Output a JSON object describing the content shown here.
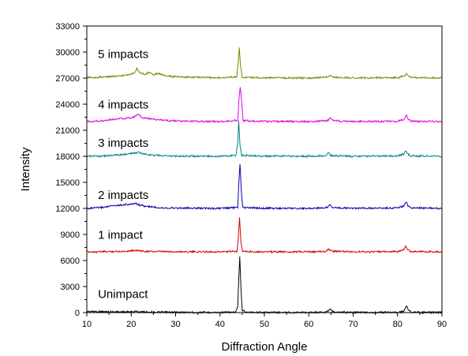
{
  "chart_data": {
    "type": "line",
    "title": "",
    "xlabel": "Diffraction Angle",
    "ylabel": "Intensity",
    "xlim": [
      10,
      90
    ],
    "ylim": [
      0,
      33000
    ],
    "xticks": [
      10,
      20,
      30,
      40,
      50,
      60,
      70,
      80,
      90
    ],
    "yticks": [
      0,
      3000,
      6000,
      9000,
      12000,
      15000,
      18000,
      21000,
      24000,
      27000,
      30000,
      33000
    ],
    "grid": false,
    "legend": "inline-labels",
    "series": [
      {
        "name": "Unimpact",
        "color": "#000000",
        "baseline": 0,
        "label_pos": [
          12.5,
          1700
        ],
        "points": [
          [
            10,
            150
          ],
          [
            12,
            120
          ],
          [
            14,
            100
          ],
          [
            16,
            90
          ],
          [
            18,
            80
          ],
          [
            20,
            90
          ],
          [
            21,
            150
          ],
          [
            22,
            90
          ],
          [
            25,
            60
          ],
          [
            30,
            30
          ],
          [
            35,
            20
          ],
          [
            40,
            20
          ],
          [
            43.5,
            40
          ],
          [
            44,
            600
          ],
          [
            44.2,
            3500
          ],
          [
            44.45,
            6500
          ],
          [
            44.7,
            3000
          ],
          [
            45,
            300
          ],
          [
            46,
            40
          ],
          [
            50,
            20
          ],
          [
            55,
            20
          ],
          [
            60,
            20
          ],
          [
            63.5,
            40
          ],
          [
            64.3,
            200
          ],
          [
            64.8,
            450
          ],
          [
            65.3,
            150
          ],
          [
            66,
            30
          ],
          [
            70,
            20
          ],
          [
            75,
            20
          ],
          [
            80,
            30
          ],
          [
            81.3,
            120
          ],
          [
            81.7,
            500
          ],
          [
            82,
            800
          ],
          [
            82.3,
            450
          ],
          [
            83,
            50
          ],
          [
            85,
            20
          ],
          [
            90,
            20
          ]
        ]
      },
      {
        "name": "1 impact",
        "color": "#d40000",
        "baseline": 7000,
        "label_pos": [
          12.5,
          8500
        ],
        "points": [
          [
            10,
            7000
          ],
          [
            15,
            7020
          ],
          [
            18,
            7060
          ],
          [
            20,
            7120
          ],
          [
            21,
            7200
          ],
          [
            22,
            7100
          ],
          [
            24,
            7040
          ],
          [
            30,
            7010
          ],
          [
            40,
            7000
          ],
          [
            43.8,
            7050
          ],
          [
            44.1,
            8500
          ],
          [
            44.4,
            11000
          ],
          [
            44.7,
            8200
          ],
          [
            45.1,
            7050
          ],
          [
            50,
            7000
          ],
          [
            60,
            7000
          ],
          [
            63.8,
            7030
          ],
          [
            64.6,
            7300
          ],
          [
            65.2,
            7080
          ],
          [
            70,
            7000
          ],
          [
            80,
            7020
          ],
          [
            81.4,
            7200
          ],
          [
            81.8,
            7700
          ],
          [
            82.2,
            7300
          ],
          [
            82.8,
            7040
          ],
          [
            90,
            7000
          ]
        ]
      },
      {
        "name": "2 impacts",
        "color": "#0000aa",
        "baseline": 12000,
        "label_pos": [
          12.5,
          13100
        ],
        "points": [
          [
            10,
            12000
          ],
          [
            12,
            12050
          ],
          [
            14,
            12150
          ],
          [
            16,
            12300
          ],
          [
            18,
            12420
          ],
          [
            20,
            12480
          ],
          [
            21,
            12600
          ],
          [
            21.5,
            12450
          ],
          [
            23,
            12250
          ],
          [
            26,
            12100
          ],
          [
            30,
            12040
          ],
          [
            40,
            12000
          ],
          [
            44,
            12100
          ],
          [
            44.2,
            14500
          ],
          [
            44.5,
            17200
          ],
          [
            44.8,
            14000
          ],
          [
            45.1,
            12100
          ],
          [
            50,
            12020
          ],
          [
            60,
            12000
          ],
          [
            64.2,
            12100
          ],
          [
            64.8,
            12450
          ],
          [
            65.4,
            12080
          ],
          [
            70,
            12000
          ],
          [
            80,
            12050
          ],
          [
            81.5,
            12300
          ],
          [
            81.9,
            12750
          ],
          [
            82.3,
            12350
          ],
          [
            83,
            12060
          ],
          [
            90,
            12000
          ]
        ]
      },
      {
        "name": "3 impacts",
        "color": "#008080",
        "baseline": 18000,
        "label_pos": [
          12.5,
          19100
        ],
        "points": [
          [
            10,
            18000
          ],
          [
            14,
            18050
          ],
          [
            17,
            18150
          ],
          [
            19,
            18250
          ],
          [
            20.5,
            18350
          ],
          [
            21.5,
            18450
          ],
          [
            22.5,
            18300
          ],
          [
            25,
            18120
          ],
          [
            30,
            18030
          ],
          [
            40,
            18000
          ],
          [
            43.6,
            18100
          ],
          [
            44,
            19500
          ],
          [
            44.2,
            22000
          ],
          [
            44.5,
            19300
          ],
          [
            44.9,
            18100
          ],
          [
            50,
            18020
          ],
          [
            60,
            18000
          ],
          [
            63.8,
            18080
          ],
          [
            64.4,
            18380
          ],
          [
            65,
            18080
          ],
          [
            70,
            18000
          ],
          [
            80,
            18050
          ],
          [
            81.4,
            18250
          ],
          [
            81.8,
            18650
          ],
          [
            82.2,
            18280
          ],
          [
            83,
            18050
          ],
          [
            90,
            18000
          ]
        ]
      },
      {
        "name": "4 impacts",
        "color": "#e000e0",
        "baseline": 22000,
        "label_pos": [
          12.5,
          23500
        ],
        "points": [
          [
            10,
            22000
          ],
          [
            13,
            22080
          ],
          [
            16,
            22250
          ],
          [
            19,
            22400
          ],
          [
            20.5,
            22480
          ],
          [
            21.5,
            22850
          ],
          [
            22.5,
            22450
          ],
          [
            25,
            22250
          ],
          [
            28,
            22120
          ],
          [
            32,
            22050
          ],
          [
            40,
            22000
          ],
          [
            44,
            22150
          ],
          [
            44.3,
            24800
          ],
          [
            44.55,
            26000
          ],
          [
            44.85,
            24500
          ],
          [
            45.2,
            22100
          ],
          [
            50,
            22020
          ],
          [
            60,
            22000
          ],
          [
            64.3,
            22120
          ],
          [
            64.9,
            22450
          ],
          [
            65.5,
            22100
          ],
          [
            70,
            22000
          ],
          [
            80,
            22040
          ],
          [
            81.6,
            22300
          ],
          [
            82,
            22700
          ],
          [
            82.4,
            22300
          ],
          [
            83,
            22050
          ],
          [
            90,
            22000
          ]
        ]
      },
      {
        "name": "5 impacts",
        "color": "#808000",
        "baseline": 27000,
        "label_pos": [
          12.5,
          29300
        ],
        "points": [
          [
            10,
            27050
          ],
          [
            13,
            27120
          ],
          [
            16,
            27220
          ],
          [
            19,
            27350
          ],
          [
            20.5,
            27500
          ],
          [
            21.3,
            28100
          ],
          [
            22,
            27600
          ],
          [
            23.2,
            27450
          ],
          [
            24,
            27650
          ],
          [
            25,
            27400
          ],
          [
            26.2,
            27550
          ],
          [
            27,
            27350
          ],
          [
            29,
            27200
          ],
          [
            32,
            27120
          ],
          [
            36,
            27080
          ],
          [
            40,
            27050
          ],
          [
            43.8,
            27150
          ],
          [
            44.1,
            28800
          ],
          [
            44.35,
            30500
          ],
          [
            44.6,
            28500
          ],
          [
            45,
            27100
          ],
          [
            50,
            27030
          ],
          [
            60,
            27020
          ],
          [
            64.2,
            27120
          ],
          [
            64.8,
            27350
          ],
          [
            65.4,
            27100
          ],
          [
            70,
            27020
          ],
          [
            80,
            27050
          ],
          [
            81.6,
            27250
          ],
          [
            82,
            27500
          ],
          [
            82.4,
            27250
          ],
          [
            83,
            27070
          ],
          [
            90,
            27030
          ]
        ]
      }
    ]
  }
}
